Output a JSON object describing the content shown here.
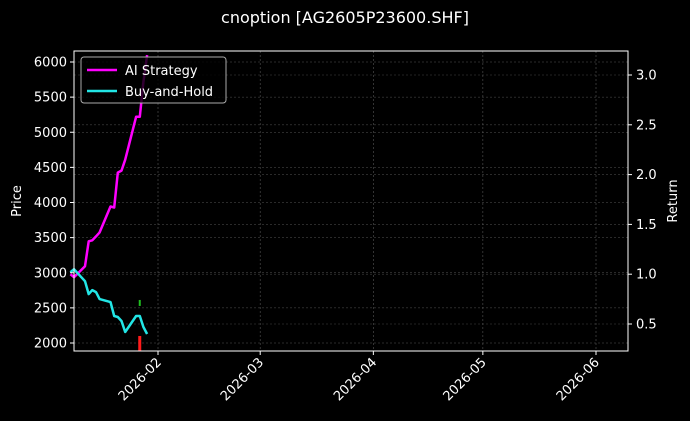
{
  "chart_data": {
    "type": "line",
    "title": "cnoption [AG2605P23600.SHF]",
    "xlabel": "",
    "ylabel": "Price",
    "y2label": "Return",
    "ylim": [
      1880,
      6150
    ],
    "y2lim": [
      0.22,
      3.25
    ],
    "yticks": [
      2000,
      2500,
      3000,
      3500,
      4000,
      4500,
      5000,
      5500,
      6000
    ],
    "y2ticks": [
      "0.5",
      "1.0",
      "1.5",
      "2.0",
      "2.5",
      "3.0"
    ],
    "xticks": [
      "2026-02",
      "2026-03",
      "2026-04",
      "2026-05",
      "2026-06"
    ],
    "grid": true,
    "legend_position": "upper left",
    "background": "#000000",
    "series": [
      {
        "name": "AI Strategy",
        "axis": "return",
        "color": "#ff00ff",
        "x": [
          "2026-01-08",
          "2026-01-09",
          "2026-01-12",
          "2026-01-13",
          "2026-01-14",
          "2026-01-15",
          "2026-01-16",
          "2026-01-19",
          "2026-01-20",
          "2026-01-21",
          "2026-01-22",
          "2026-01-23",
          "2026-01-26",
          "2026-01-27",
          "2026-01-28",
          "2026-01-29"
        ],
        "values": [
          1.0,
          0.97,
          1.08,
          1.33,
          1.34,
          1.38,
          1.42,
          1.68,
          1.67,
          2.02,
          2.04,
          2.15,
          2.58,
          2.58,
          2.93,
          3.2
        ]
      },
      {
        "name": "Buy-and-Hold",
        "axis": "return",
        "color": "#22e5e5",
        "x": [
          "2026-01-08",
          "2026-01-09",
          "2026-01-12",
          "2026-01-13",
          "2026-01-14",
          "2026-01-15",
          "2026-01-16",
          "2026-01-19",
          "2026-01-20",
          "2026-01-21",
          "2026-01-22",
          "2026-01-23",
          "2026-01-26",
          "2026-01-27",
          "2026-01-28",
          "2026-01-29"
        ],
        "values": [
          1.02,
          1.05,
          0.93,
          0.8,
          0.84,
          0.82,
          0.75,
          0.72,
          0.58,
          0.57,
          0.53,
          0.42,
          0.58,
          0.58,
          0.47,
          0.4
        ]
      }
    ],
    "markers": [
      {
        "type": "sell",
        "color": "#ff1a1a",
        "date": "2026-01-27",
        "price_from": 2000,
        "price_to": 2100
      },
      {
        "type": "buy",
        "color": "#1fbf1f",
        "date": "2026-01-27",
        "price": 2570
      }
    ]
  },
  "legend": {
    "items": [
      {
        "label": "AI Strategy",
        "color": "#ff00ff"
      },
      {
        "label": "Buy-and-Hold",
        "color": "#22e5e5"
      }
    ]
  }
}
